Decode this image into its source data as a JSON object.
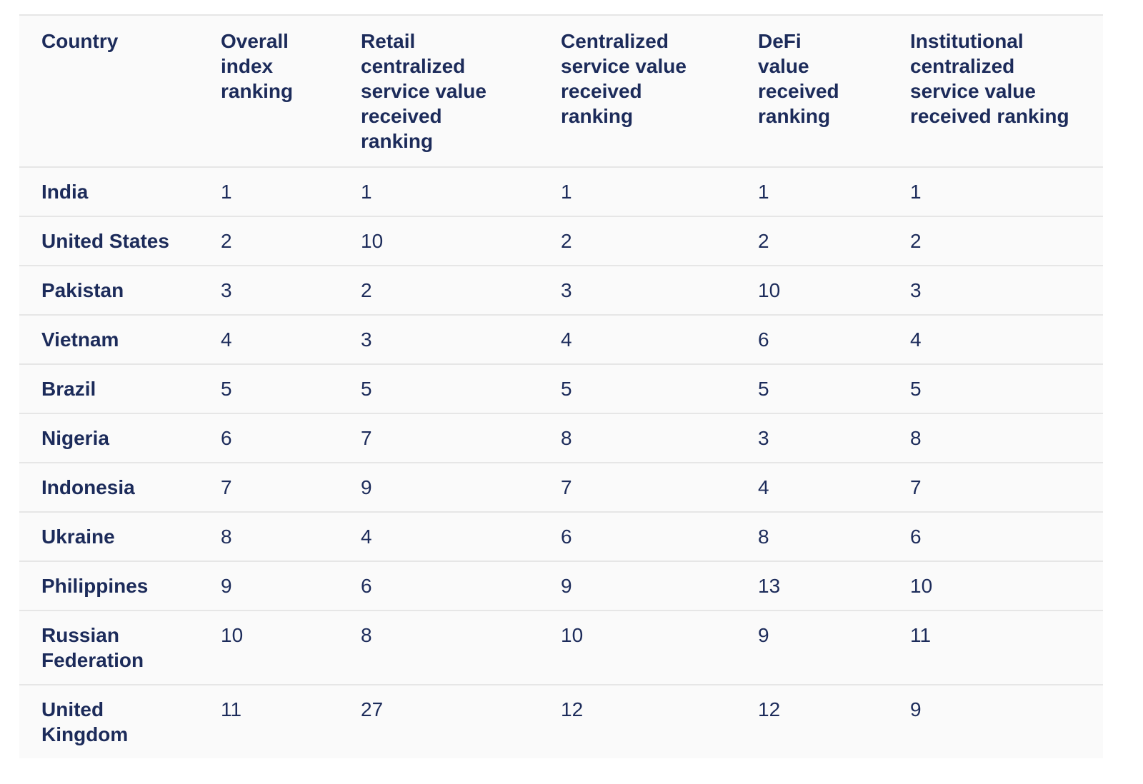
{
  "table": {
    "headers": [
      "Country",
      "Overall index ranking",
      "Retail centralized service value received ranking",
      "Centralized service value received ranking",
      "DeFi value received ranking",
      "Institutional centralized service value received ranking"
    ],
    "rows": [
      [
        "India",
        1,
        1,
        1,
        1,
        1
      ],
      [
        "United States",
        2,
        10,
        2,
        2,
        2
      ],
      [
        "Pakistan",
        3,
        2,
        3,
        10,
        3
      ],
      [
        "Vietnam",
        4,
        3,
        4,
        6,
        4
      ],
      [
        "Brazil",
        5,
        5,
        5,
        5,
        5
      ],
      [
        "Nigeria",
        6,
        7,
        8,
        3,
        8
      ],
      [
        "Indonesia",
        7,
        9,
        7,
        4,
        7
      ],
      [
        "Ukraine",
        8,
        4,
        6,
        8,
        6
      ],
      [
        "Philippines",
        9,
        6,
        9,
        13,
        10
      ],
      [
        "Russian Federation",
        10,
        8,
        10,
        9,
        11
      ],
      [
        "United Kingdom",
        11,
        27,
        12,
        12,
        9
      ]
    ]
  }
}
